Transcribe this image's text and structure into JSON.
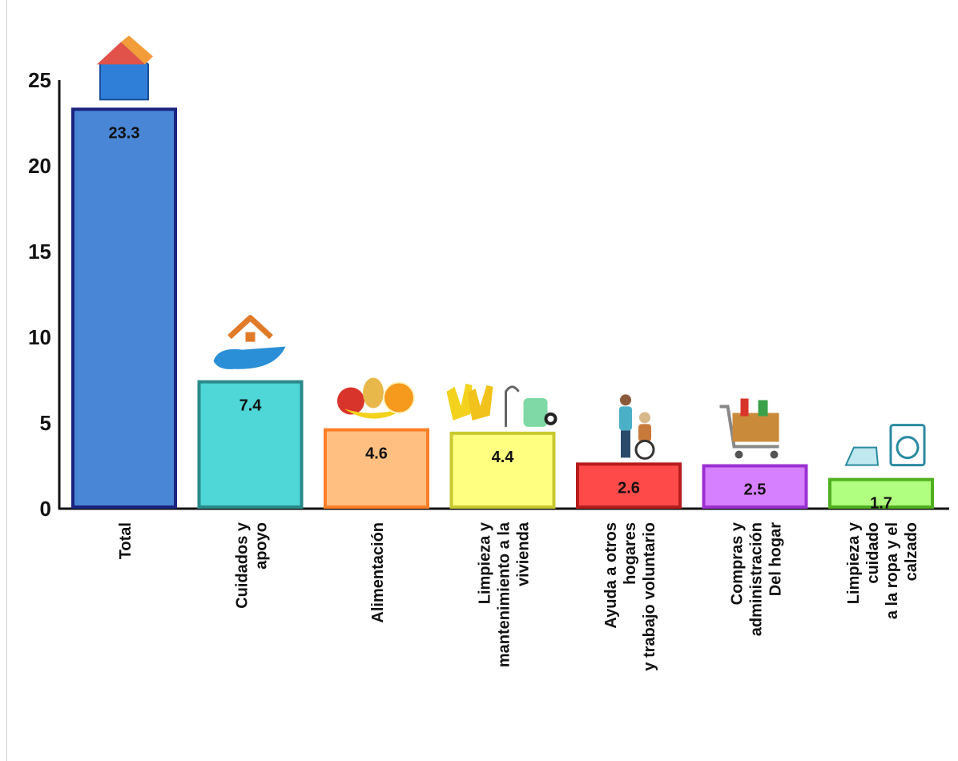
{
  "chart_data": {
    "type": "bar",
    "title": "",
    "xlabel": "",
    "ylabel": "",
    "ylim": [
      0,
      25
    ],
    "yticks": [
      0,
      5,
      10,
      15,
      20,
      25
    ],
    "grid": false,
    "legend": "none",
    "categories": [
      [
        "Total"
      ],
      [
        "Cuidados y",
        "apoyo"
      ],
      [
        "Alimentación"
      ],
      [
        "Limpieza y",
        "mantenimiento a la",
        "vivienda"
      ],
      [
        "Ayuda a otros",
        "hogares",
        "y trabajo voluntario"
      ],
      [
        "Compras y",
        "administración",
        "Del hogar"
      ],
      [
        "Limpieza y",
        "cuidado",
        "a la ropa y el",
        "calzado"
      ]
    ],
    "values": [
      23.3,
      7.4,
      4.6,
      4.4,
      2.6,
      2.5,
      1.7
    ],
    "value_labels": [
      "23.3",
      "7.4",
      "4.6",
      "4.4",
      "2.6",
      "2.5",
      "1.7"
    ],
    "colors": {
      "fill": [
        "#4a86d6",
        "#4fd6d6",
        "#ffbf80",
        "#ffff80",
        "#ff4a4a",
        "#d67fff",
        "#b0ff80"
      ],
      "stroke": [
        "#1a237e",
        "#2a8a8a",
        "#ff7f27",
        "#c8c830",
        "#b71c1c",
        "#9b30d0",
        "#50b020"
      ]
    },
    "icons": [
      "house-icon",
      "hand-house-icon",
      "fruit-icon",
      "gloves-vacuum-icon",
      "caregiver-wheelchair-icon",
      "shopping-cart-icon",
      "iron-washer-icon"
    ]
  }
}
